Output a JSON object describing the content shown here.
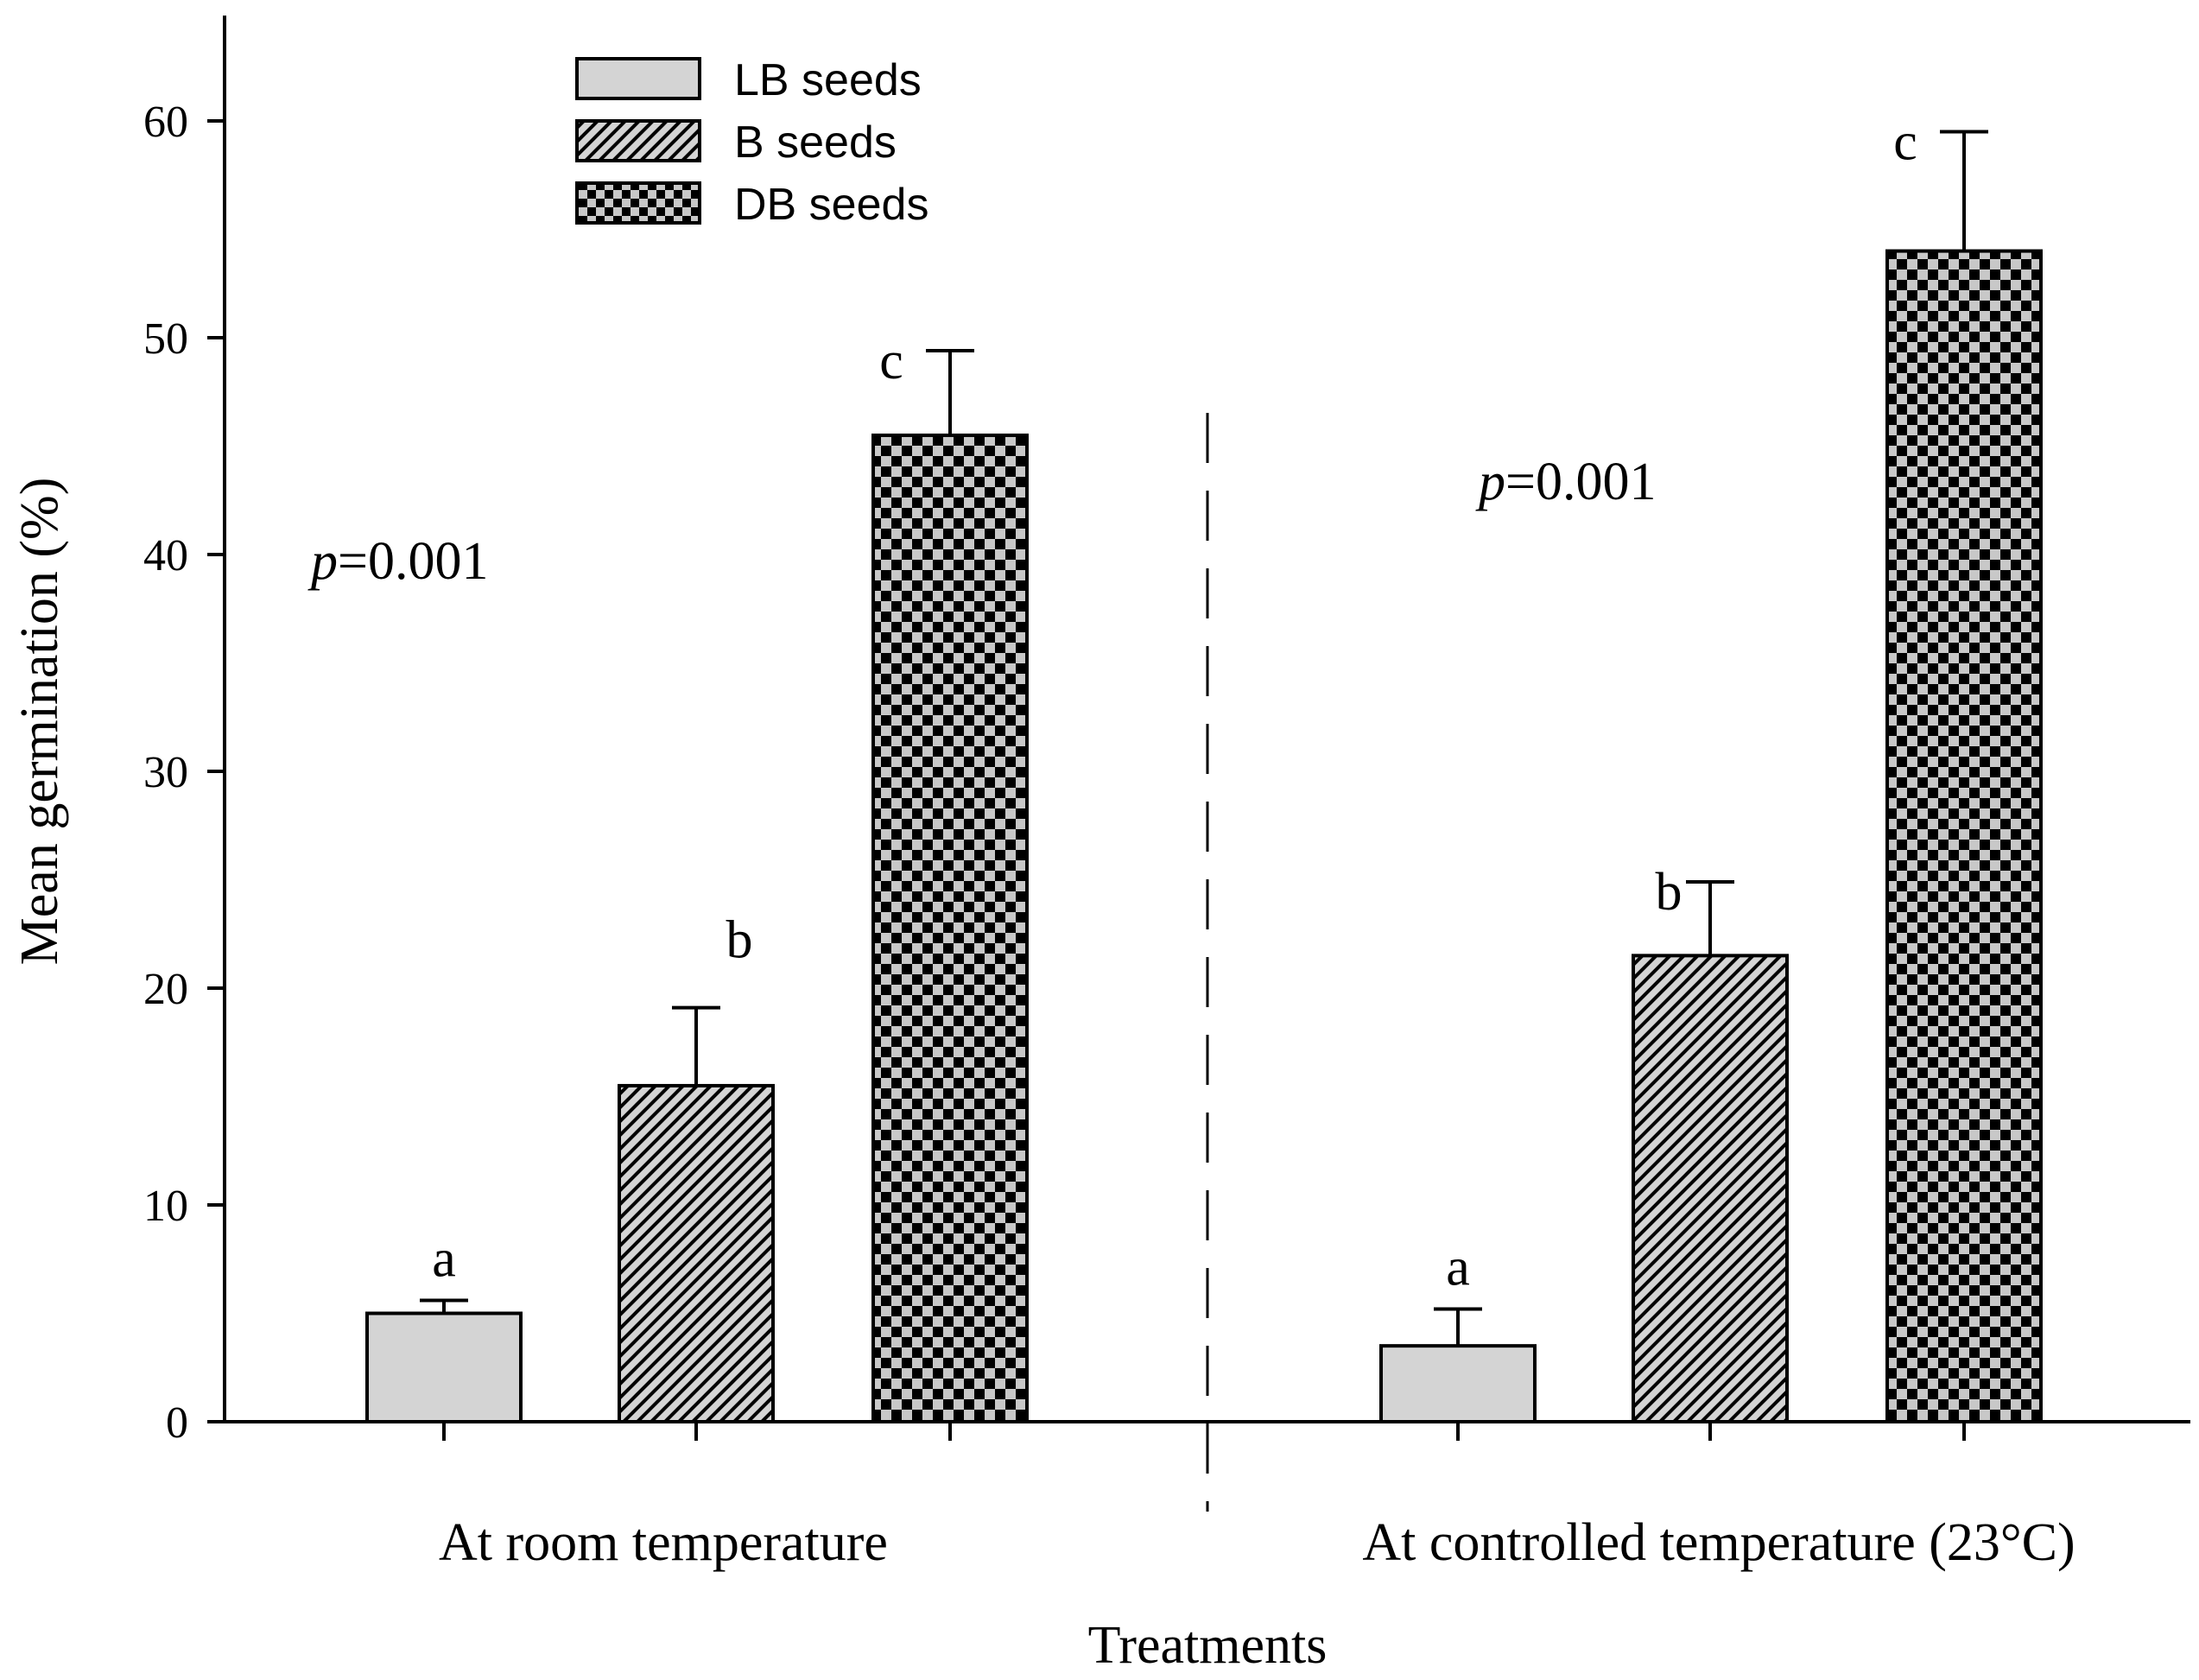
{
  "chart_data": {
    "type": "bar",
    "ylabel": "Mean germination (%)",
    "xlabel": "Treatments",
    "ylim": [
      0,
      65
    ],
    "yticks": [
      0,
      10,
      20,
      30,
      40,
      50,
      60
    ],
    "groups": [
      {
        "label": "At room temperature",
        "p_label": "p",
        "p_value": "=0.001",
        "bars": [
          {
            "series": "LB seeds",
            "value": 5.0,
            "error": 0.6,
            "letter": "a"
          },
          {
            "series": "B seeds",
            "value": 15.5,
            "error": 3.6,
            "letter": "b"
          },
          {
            "series": "DB seeds",
            "value": 45.5,
            "error": 3.9,
            "letter": "c"
          }
        ]
      },
      {
        "label": "At controlled temperature (23°C)",
        "p_label": "p",
        "p_value": "=0.001",
        "bars": [
          {
            "series": "LB seeds",
            "value": 3.5,
            "error": 1.7,
            "letter": "a"
          },
          {
            "series": "B seeds",
            "value": 21.5,
            "error": 3.4,
            "letter": "b"
          },
          {
            "series": "DB seeds",
            "value": 54.0,
            "error": 5.5,
            "letter": "c"
          }
        ]
      }
    ],
    "legend": [
      {
        "name": "LB seeds",
        "pattern": "solid"
      },
      {
        "name": "B seeds",
        "pattern": "hatch"
      },
      {
        "name": "DB seeds",
        "pattern": "checker"
      }
    ],
    "legend_position": "top-left",
    "grid": false
  },
  "colors": {
    "light_fill": "#d4d4d4",
    "hatch_bg": "#d4d4d4",
    "hatch_line": "#000000",
    "checker_dark": "#000000",
    "checker_light": "#c8c8c8",
    "axis": "#000000"
  }
}
